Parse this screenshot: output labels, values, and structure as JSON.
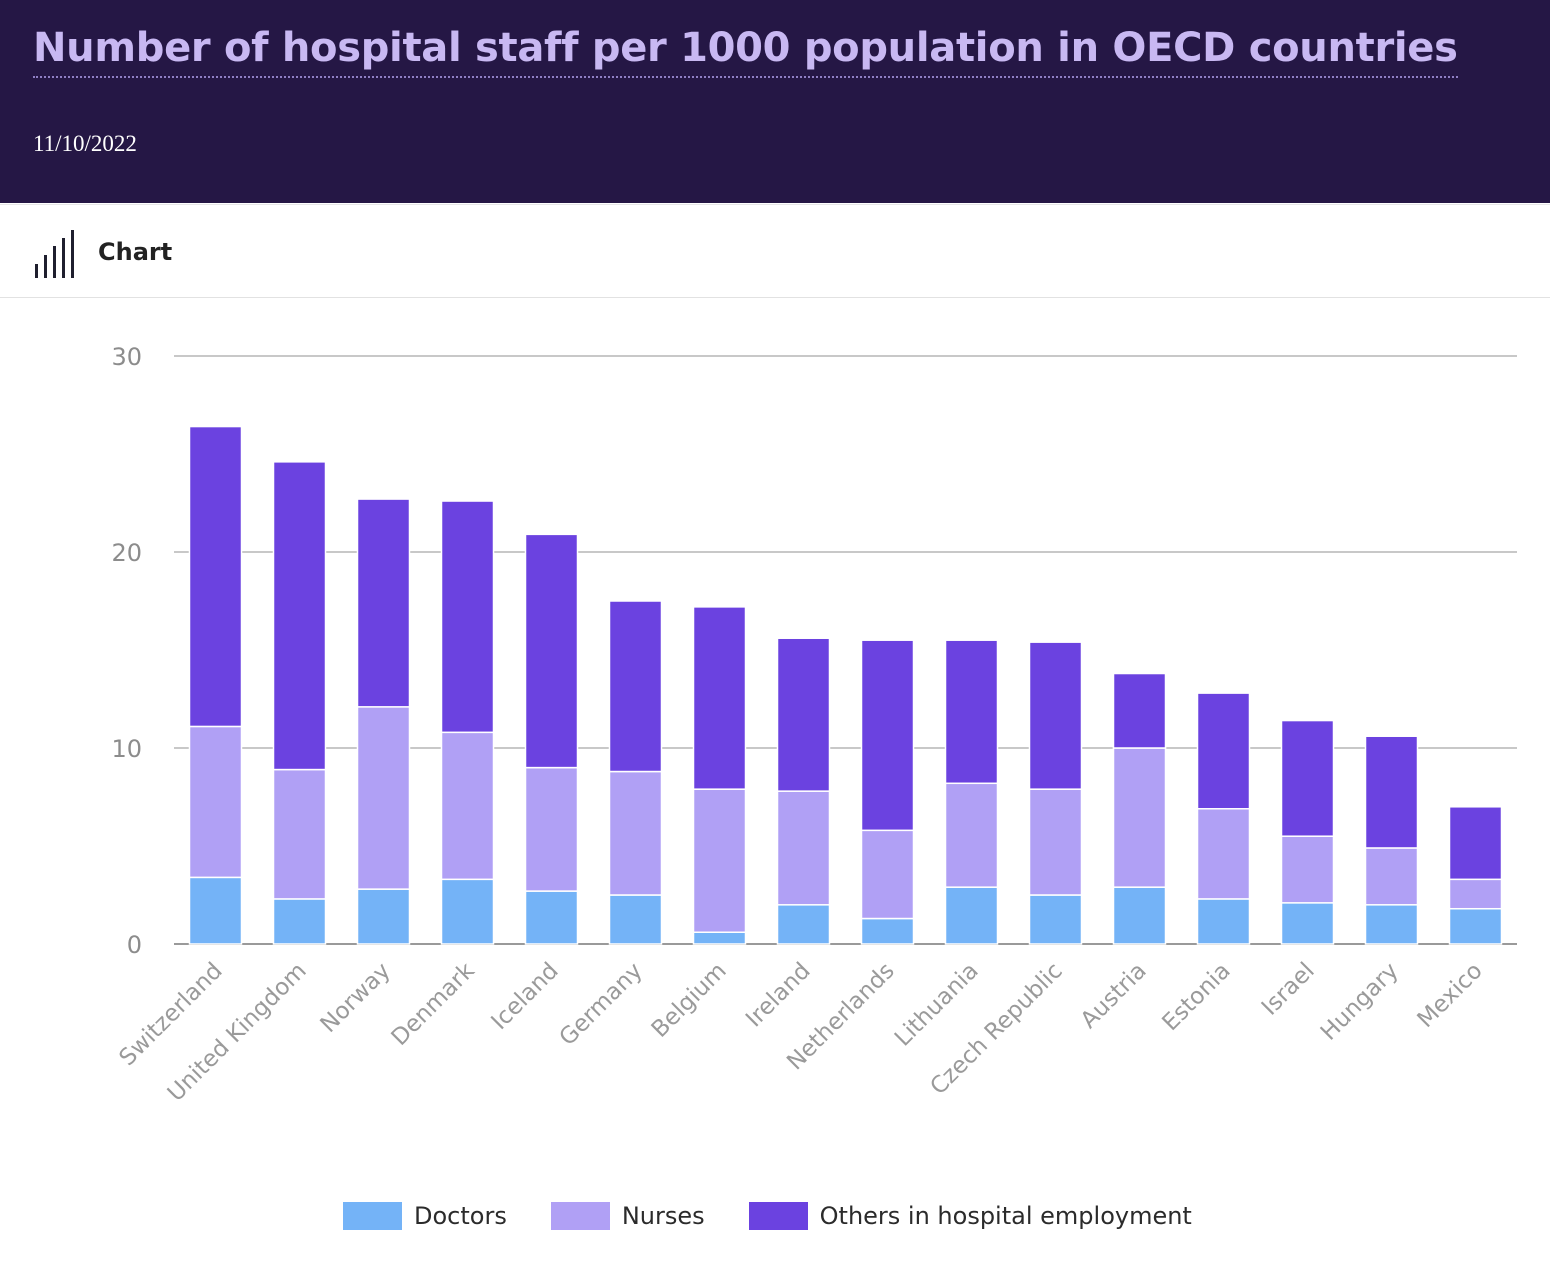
{
  "header": {
    "title": "Number of hospital staff per 1000 population in OECD countries",
    "date": "11/10/2022"
  },
  "toolbar": {
    "tab_label": "Chart",
    "tab_icon": "bar-chart-icon"
  },
  "chart_data": {
    "type": "bar",
    "stacked": true,
    "title": "Number of hospital staff per 1000 population in OECD countries",
    "xlabel": "",
    "ylabel": "",
    "ylim": [
      0,
      30
    ],
    "yticks": [
      "0",
      "10",
      "20",
      "30"
    ],
    "grid": true,
    "legend_position": "bottom",
    "categories": [
      "Switzerland",
      "United Kingdom",
      "Norway",
      "Denmark",
      "Iceland",
      "Germany",
      "Belgium",
      "Ireland",
      "Netherlands",
      "Lithuania",
      "Czech Republic",
      "Austria",
      "Estonia",
      "Israel",
      "Hungary",
      "Mexico"
    ],
    "series": [
      {
        "name": "Doctors",
        "color": "#74b3f7",
        "values": [
          3.4,
          2.3,
          2.8,
          3.3,
          2.7,
          2.5,
          0.6,
          2.0,
          1.3,
          2.9,
          2.5,
          2.9,
          2.3,
          2.1,
          2.0,
          1.8
        ]
      },
      {
        "name": "Nurses",
        "color": "#b0a0f5",
        "values": [
          7.7,
          6.6,
          9.3,
          7.5,
          6.3,
          6.3,
          7.3,
          5.8,
          4.5,
          5.3,
          5.4,
          7.1,
          4.6,
          3.4,
          2.9,
          1.5
        ]
      },
      {
        "name": "Others in hospital employment",
        "color": "#6b42e0",
        "values": [
          15.3,
          15.7,
          10.6,
          11.8,
          11.9,
          8.7,
          9.3,
          7.8,
          9.7,
          7.3,
          7.5,
          3.8,
          5.9,
          5.9,
          5.7,
          3.7
        ]
      }
    ]
  }
}
